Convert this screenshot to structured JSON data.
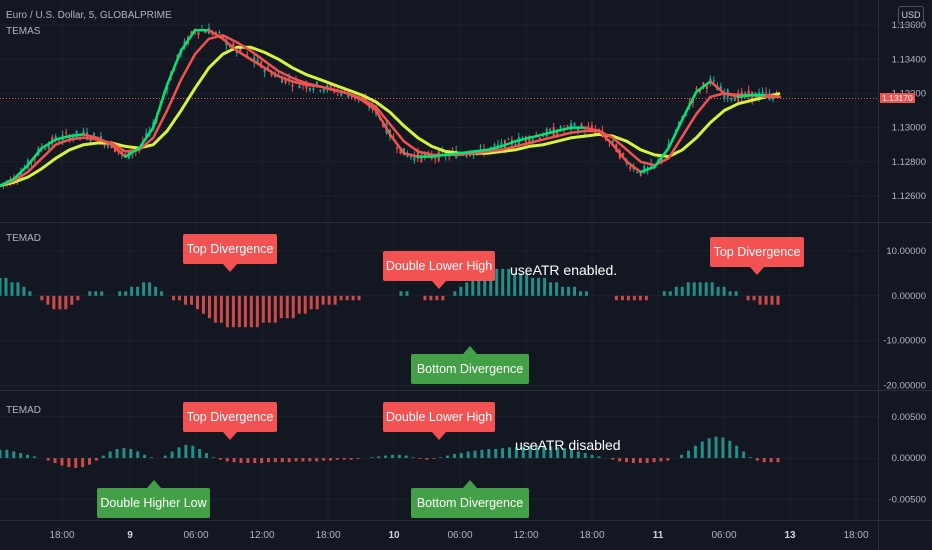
{
  "header": {
    "symbol_title": "Euro / U.S. Dollar, 5, GLOBALPRIME",
    "indicator1": "TEMAS",
    "indicator2": "TEMAD",
    "indicator3": "TEMAD",
    "currency": "USD"
  },
  "colors": {
    "background": "#131722",
    "grid": "#1e222d",
    "up_bar": "#26a69a",
    "down_bar": "#ef5350",
    "callout_red": "#f25252",
    "callout_green": "#44a047",
    "fast_line": "#00e676",
    "slow_line": "#d7f23d"
  },
  "annotations": {
    "pane2_top_left": "Top Divergence",
    "pane2_double_lower_high": "Double Lower High",
    "pane2_top_right": "Top Divergence",
    "pane2_note": "useATR enabled.",
    "pane2_bottom": "Bottom Divergence",
    "pane3_top_left": "Top Divergence",
    "pane3_double_lower_high": "Double Lower High",
    "pane3_note": "useATR disabled",
    "pane3_double_higher_low": "Double Higher Low",
    "pane3_bottom": "Bottom Divergence"
  },
  "chart_data": [
    {
      "type": "line",
      "title": "Euro / U.S. Dollar, 5, GLOBALPRIME",
      "indicator": "TEMAS",
      "y_ticks": [
        "1.13600",
        "1.13400",
        "1.13200",
        "1.13000",
        "1.12800",
        "1.12600"
      ],
      "ylim": [
        1.125,
        1.137
      ],
      "x_ticks": [
        "18:00",
        "9",
        "06:00",
        "12:00",
        "18:00",
        "10",
        "06:00",
        "12:00",
        "18:00",
        "11",
        "06:00",
        "13",
        "18:00"
      ],
      "x": [
        0,
        4,
        8,
        12,
        16,
        20,
        24,
        28,
        32,
        36,
        40,
        44,
        48,
        52,
        56,
        60,
        64,
        68,
        72,
        76,
        80,
        84,
        88,
        92,
        96,
        100,
        104,
        108,
        112,
        116,
        120,
        124,
        128,
        132,
        136,
        140,
        144,
        148,
        152,
        156,
        160,
        164,
        168,
        172,
        176,
        180,
        184,
        188,
        192,
        196,
        200,
        204,
        208,
        212,
        216,
        220,
        224
      ],
      "series": [
        {
          "values": [
            1.1266,
            1.127,
            1.1278,
            1.1288,
            1.1293,
            1.1295,
            1.1296,
            1.1294,
            1.129,
            1.1283,
            1.1288,
            1.13,
            1.1325,
            1.1345,
            1.1357,
            1.1357,
            1.1352,
            1.1345,
            1.134,
            1.1335,
            1.133,
            1.1327,
            1.1325,
            1.1324,
            1.1322,
            1.132,
            1.1316,
            1.131,
            1.1296,
            1.1285,
            1.1283,
            1.1283,
            1.1284,
            1.1285,
            1.1286,
            1.1287,
            1.1289,
            1.1292,
            1.1294,
            1.1296,
            1.1298,
            1.13,
            1.13,
            1.1298,
            1.129,
            1.128,
            1.1274,
            1.1277,
            1.1288,
            1.1305,
            1.1321,
            1.1327,
            1.132,
            1.1318,
            1.1319,
            1.1319,
            1.1318
          ]
        },
        {
          "values": [
            1.1266,
            1.1269,
            1.1274,
            1.1282,
            1.129,
            1.1293,
            1.1294,
            1.1293,
            1.1291,
            1.1286,
            1.1287,
            1.1294,
            1.131,
            1.1328,
            1.1343,
            1.1352,
            1.1354,
            1.135,
            1.1345,
            1.1339,
            1.1333,
            1.1329,
            1.1326,
            1.1324,
            1.1322,
            1.132,
            1.1317,
            1.1312,
            1.1302,
            1.1292,
            1.1286,
            1.1284,
            1.1284,
            1.1284,
            1.1285,
            1.1286,
            1.1287,
            1.1289,
            1.1291,
            1.1293,
            1.1295,
            1.1297,
            1.1298,
            1.1298,
            1.1294,
            1.1287,
            1.128,
            1.1278,
            1.1282,
            1.1295,
            1.1308,
            1.1318,
            1.132,
            1.1319,
            1.1319,
            1.1318,
            1.1318
          ]
        },
        {
          "values": [
            1.1266,
            1.1268,
            1.1271,
            1.1276,
            1.1282,
            1.1287,
            1.129,
            1.1291,
            1.1291,
            1.1289,
            1.1288,
            1.129,
            1.1298,
            1.131,
            1.1323,
            1.1335,
            1.1343,
            1.1347,
            1.1347,
            1.1344,
            1.134,
            1.1335,
            1.1331,
            1.1328,
            1.1325,
            1.1322,
            1.1319,
            1.1315,
            1.1309,
            1.1301,
            1.1294,
            1.1289,
            1.1286,
            1.1285,
            1.1285,
            1.1285,
            1.1286,
            1.1287,
            1.1289,
            1.129,
            1.1292,
            1.1294,
            1.1295,
            1.1296,
            1.1295,
            1.1292,
            1.1287,
            1.1284,
            1.1283,
            1.1287,
            1.1294,
            1.1303,
            1.131,
            1.1314,
            1.1316,
            1.1318,
            1.132
          ]
        }
      ],
      "last_price": 1.1317
    },
    {
      "type": "bar",
      "indicator": "TEMAD",
      "y_ticks": [
        "10.00000",
        "0.00000",
        "-10.00000",
        "-20.00000"
      ],
      "ylim": [
        -21,
        16
      ],
      "values": [
        4,
        4,
        3,
        3,
        2,
        1,
        0,
        -1,
        -2,
        -3,
        -3,
        -3,
        -2,
        -1,
        0,
        1,
        1,
        1,
        0,
        0,
        1,
        1,
        2,
        2,
        3,
        3,
        2,
        1,
        0,
        -1,
        -1,
        -2,
        -2,
        -3,
        -4,
        -5,
        -6,
        -6,
        -7,
        -7,
        -7,
        -7,
        -7,
        -7,
        -6,
        -6,
        -6,
        -5,
        -5,
        -5,
        -4,
        -4,
        -3,
        -3,
        -2,
        -2,
        -2,
        -1,
        -1,
        -1,
        -1,
        0,
        0,
        0,
        0,
        0,
        0,
        1,
        1,
        0,
        0,
        -1,
        -1,
        -1,
        -1,
        0,
        1,
        2,
        3,
        4,
        4,
        5,
        6,
        6,
        6,
        6,
        5,
        5,
        5,
        4,
        4,
        4,
        3,
        3,
        2,
        2,
        2,
        1,
        1,
        0,
        0,
        0,
        0,
        -1,
        -1,
        -1,
        -1,
        -1,
        -1,
        0,
        0,
        1,
        1,
        2,
        2,
        3,
        3,
        3,
        3,
        3,
        2,
        2,
        1,
        1,
        0,
        -1,
        -1,
        -2,
        -2,
        -2,
        -2
      ]
    },
    {
      "type": "bar",
      "indicator": "TEMAD",
      "y_ticks": [
        "0.00500",
        "0.00000",
        "-0.00500"
      ],
      "ylim": [
        -0.0075,
        0.008
      ],
      "values": [
        1,
        1,
        0.8,
        0.6,
        0.4,
        0.2,
        0,
        -0.3,
        -0.6,
        -0.9,
        -1.1,
        -1.2,
        -1.1,
        -0.8,
        -0.3,
        0.3,
        0.8,
        1.1,
        1.2,
        1.1,
        0.8,
        0.4,
        0.1,
        0,
        0.3,
        0.8,
        1.3,
        1.6,
        1.5,
        1.1,
        0.6,
        0.1,
        -0.2,
        -0.4,
        -0.5,
        -0.6,
        -0.6,
        -0.6,
        -0.6,
        -0.5,
        -0.5,
        -0.5,
        -0.5,
        -0.4,
        -0.4,
        -0.4,
        -0.4,
        -0.3,
        -0.3,
        -0.2,
        -0.2,
        -0.2,
        -0.1,
        0,
        0.1,
        0.2,
        0.3,
        0.4,
        0.4,
        0.3,
        0.1,
        -0.1,
        -0.2,
        -0.1,
        0.1,
        0.3,
        0.5,
        0.6,
        0.8,
        0.9,
        1,
        1.1,
        1.1,
        1.2,
        1.3,
        1.3,
        1.4,
        1.5,
        1.5,
        1.5,
        1.4,
        1.3,
        1.2,
        1.0,
        0.8,
        0.6,
        0.4,
        0.2,
        0,
        -0.2,
        -0.4,
        -0.5,
        -0.6,
        -0.6,
        -0.6,
        -0.5,
        -0.4,
        -0.3,
        0,
        0.4,
        0.9,
        1.5,
        2.0,
        2.4,
        2.6,
        2.5,
        2.1,
        1.5,
        0.8,
        0.1,
        -0.3,
        -0.5,
        -0.5,
        -0.5
      ]
    }
  ]
}
